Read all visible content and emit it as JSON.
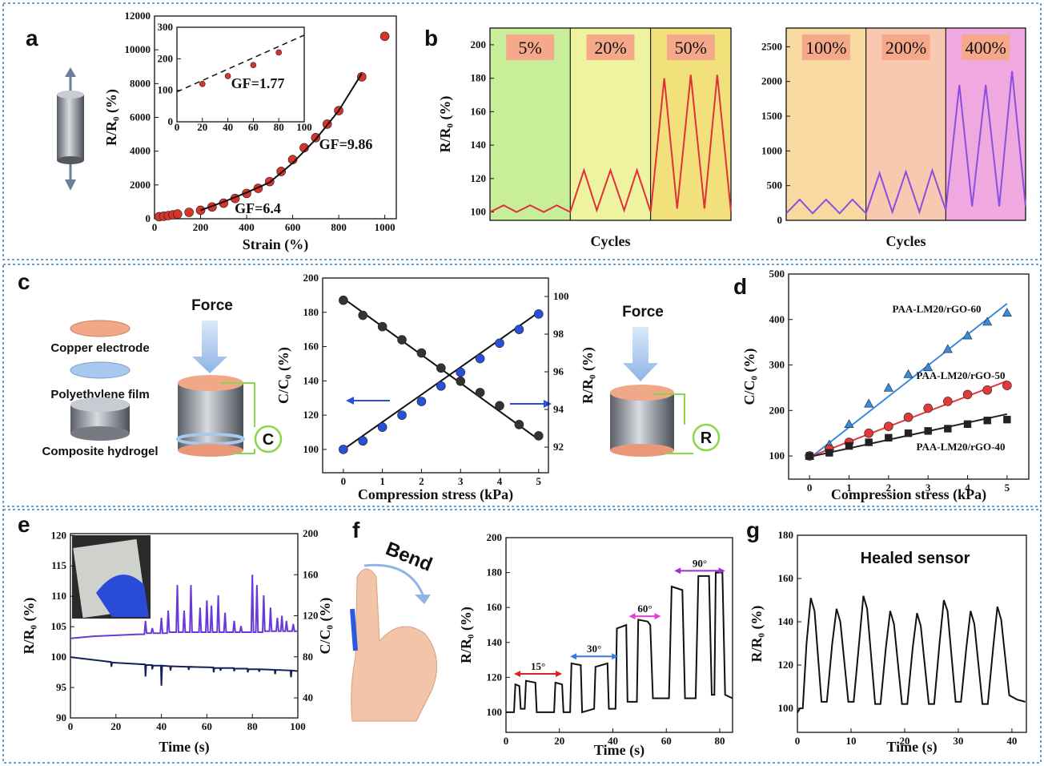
{
  "panels": [
    "a",
    "b",
    "c",
    "d",
    "e",
    "f",
    "g"
  ],
  "illustrations": {
    "layers": [
      "Copper electrode",
      "Polyethylene film",
      "Composite hydrogel"
    ],
    "force": "Force",
    "c_symbol": "C",
    "r_symbol": "R",
    "bend": "Bend"
  },
  "chart_data": [
    {
      "type": "scatter",
      "xlabel": "Strain (%)",
      "ylabel": "R/R₀ (%)",
      "xlim": [
        0,
        1050
      ],
      "ylim": [
        0,
        12000
      ],
      "xticks": [
        0,
        200,
        400,
        600,
        800,
        1000
      ],
      "yticks": [
        0,
        2000,
        4000,
        6000,
        8000,
        10000,
        12000
      ],
      "annotations": [
        "GF=9.86",
        "GF=6.4"
      ],
      "series": [
        {
          "color": "#d8352a",
          "marker": "circle",
          "x": [
            20,
            40,
            60,
            80,
            100,
            150,
            200,
            250,
            300,
            350,
            400,
            450,
            500,
            550,
            600,
            650,
            700,
            750,
            800,
            900,
            1000
          ],
          "values": [
            120,
            150,
            190,
            230,
            280,
            380,
            500,
            700,
            920,
            1200,
            1500,
            1800,
            2200,
            2800,
            3500,
            4200,
            4800,
            5600,
            6400,
            8400,
            10800
          ]
        },
        {
          "color": "#111111",
          "x": [
            200,
            300,
            400,
            500,
            600,
            700,
            800,
            900
          ],
          "values": [
            500,
            1000,
            1550,
            2150,
            3300,
            4700,
            6400,
            8600
          ]
        }
      ]
    },
    {
      "type": "scatter",
      "xlim": [
        0,
        100
      ],
      "ylim": [
        0,
        300
      ],
      "xticks": [
        0,
        20,
        40,
        60,
        80,
        100
      ],
      "yticks": [
        0,
        100,
        200,
        300
      ],
      "annotations": [
        "GF=1.77"
      ],
      "series": [
        {
          "color": "#d8352a",
          "marker": "circle",
          "x": [
            20,
            40,
            60,
            80
          ],
          "values": [
            120,
            145,
            180,
            220
          ]
        },
        {
          "color": "#111111",
          "dash": true,
          "x": [
            0,
            100
          ],
          "values": [
            95,
            275
          ]
        }
      ]
    },
    {
      "type": "line",
      "xlabel": "Cycles",
      "ylabel": "R/R₀ (%)",
      "xlim": [
        0,
        3
      ],
      "ylim": [
        95,
        210
      ],
      "yticks": [
        100,
        120,
        140,
        160,
        180,
        200
      ],
      "bands": [
        {
          "label": "5%",
          "color": "#c8ee9a"
        },
        {
          "label": "20%",
          "color": "#eef3a0"
        },
        {
          "label": "50%",
          "color": "#f2e17a"
        }
      ],
      "band_label_color": "#f6a88a",
      "series": [
        {
          "color": "#e0303a",
          "x": [
            0,
            0.17,
            0.33,
            0.5,
            0.67,
            0.83,
            1,
            1.17,
            1.33,
            1.5,
            1.67,
            1.83,
            2,
            2.17,
            2.33,
            2.5,
            2.67,
            2.83,
            3
          ],
          "values": [
            100,
            104,
            100,
            104,
            100,
            104,
            100,
            125,
            101,
            125,
            101,
            125,
            100,
            180,
            102,
            182,
            102,
            182,
            100
          ]
        }
      ]
    },
    {
      "type": "line",
      "xlabel": "Cycles",
      "xlim": [
        0,
        3
      ],
      "ylim": [
        0,
        2770
      ],
      "yticks": [
        0,
        500,
        1000,
        1500,
        2000,
        2500
      ],
      "bands": [
        {
          "label": "100%",
          "color": "#f8d9a0"
        },
        {
          "label": "200%",
          "color": "#f8c8b0"
        },
        {
          "label": "400%",
          "color": "#f0a8e0"
        }
      ],
      "band_label_color": "#f6a88a",
      "series": [
        {
          "color": "#8a4fe0",
          "x": [
            0,
            0.17,
            0.33,
            0.5,
            0.67,
            0.83,
            1,
            1.17,
            1.33,
            1.5,
            1.67,
            1.83,
            2,
            2.17,
            2.33,
            2.5,
            2.67,
            2.83,
            3
          ],
          "values": [
            100,
            300,
            100,
            300,
            100,
            300,
            100,
            680,
            120,
            700,
            120,
            720,
            150,
            1950,
            200,
            1950,
            200,
            2150,
            200
          ]
        }
      ]
    },
    {
      "type": "scatter",
      "xlabel": "Compression stress (kPa)",
      "ylabel": "C/C₀ (%)",
      "y2label": "R/R₀ (%)",
      "xlim": [
        -0.53,
        5.25
      ],
      "ylim": [
        86.4,
        200
      ],
      "y2lim": [
        90.64,
        100.98
      ],
      "xticks": [
        0,
        1,
        2,
        3,
        4,
        5
      ],
      "yticks": [
        100,
        120,
        140,
        160,
        180,
        200
      ],
      "y2ticks": [
        92,
        94,
        96,
        98,
        100
      ],
      "series": [
        {
          "color": "#111111",
          "x": [
            0,
            5
          ],
          "values": [
            100,
            180
          ]
        },
        {
          "color": "#111111",
          "axis": "y2",
          "x": [
            0,
            5
          ],
          "values": [
            99.9,
            92.4
          ]
        },
        {
          "color": "#2a4fd8",
          "marker": "circle",
          "x": [
            0,
            0.5,
            1,
            1.5,
            2,
            2.5,
            3,
            3.5,
            4,
            4.5,
            5
          ],
          "values": [
            100,
            105,
            113,
            120,
            128,
            137,
            145,
            153,
            162,
            170,
            179
          ]
        },
        {
          "color": "#333333",
          "marker": "circle",
          "axis": "y2",
          "x": [
            0,
            0.5,
            1,
            1.5,
            2,
            2.5,
            3,
            3.5,
            4,
            4.5,
            5
          ],
          "values": [
            99.8,
            99.0,
            98.4,
            97.7,
            97.0,
            96.2,
            95.5,
            94.9,
            94.2,
            93.2,
            92.6
          ]
        }
      ]
    },
    {
      "type": "scatter",
      "xlabel": "Compression stress (kPa)",
      "ylabel": "C/C₀ (%)",
      "xlim": [
        -0.53,
        5.55
      ],
      "ylim": [
        49,
        500
      ],
      "xticks": [
        0,
        1,
        2,
        3,
        4,
        5
      ],
      "yticks": [
        100,
        200,
        300,
        400,
        500
      ],
      "series": [
        {
          "color": "#3a8ae0",
          "x": [
            0,
            5
          ],
          "values": [
            95,
            435
          ]
        },
        {
          "color": "#e03a3a",
          "x": [
            0,
            5
          ],
          "values": [
            98,
            265
          ]
        },
        {
          "color": "#222222",
          "x": [
            0,
            5
          ],
          "values": [
            98,
            192
          ]
        },
        {
          "name": "PAA-LM20/rGO-60",
          "color": "#3a8ae0",
          "marker": "triangle",
          "x": [
            0,
            0.5,
            1,
            1.5,
            2,
            2.5,
            3,
            3.5,
            4,
            4.5,
            5
          ],
          "values": [
            100,
            125,
            170,
            215,
            250,
            280,
            295,
            335,
            365,
            395,
            415
          ]
        },
        {
          "name": "PAA-LM20/rGO-50",
          "color": "#e03a3a",
          "marker": "circle",
          "x": [
            0,
            0.5,
            1,
            1.5,
            2,
            2.5,
            3,
            3.5,
            4,
            4.5,
            5
          ],
          "values": [
            100,
            115,
            130,
            150,
            165,
            185,
            205,
            220,
            235,
            245,
            255
          ]
        },
        {
          "name": "PAA-LM20/rGO-40",
          "color": "#222222",
          "marker": "square",
          "x": [
            0,
            0.5,
            1,
            1.5,
            2,
            2.5,
            3,
            3.5,
            4,
            4.5,
            5
          ],
          "values": [
            100,
            107,
            122,
            130,
            140,
            150,
            155,
            160,
            170,
            178,
            180
          ]
        }
      ]
    },
    {
      "type": "line",
      "xlabel": "Time (s)",
      "ylabel": "R/R₀ (%)",
      "y2label": "C/C₀ (%)",
      "xlim": [
        0,
        100
      ],
      "ylim": [
        90,
        120.3
      ],
      "y2lim": [
        20.5,
        200
      ],
      "xticks": [
        0,
        20,
        40,
        60,
        80,
        100
      ],
      "yticks": [
        90,
        95,
        100,
        105,
        110,
        115,
        120
      ],
      "y2ticks": [
        40,
        80,
        120,
        160,
        200
      ],
      "series": [
        {
          "color": "#14205a",
          "x": [
            0,
            17.8,
            18,
            18.3,
            32.8,
            33,
            33.3,
            35.8,
            36,
            36.3,
            39.8,
            40,
            40.3,
            43.8,
            44,
            44.3,
            51.8,
            52,
            52.3,
            62.8,
            63,
            63.3,
            65.8,
            66,
            66.3,
            71.8,
            72,
            72.3,
            77.8,
            78,
            78.3,
            82.8,
            83,
            83.3,
            89.8,
            90,
            90.3,
            96.8,
            97,
            97.3,
            100
          ],
          "values": [
            100,
            99.2,
            98.4,
            99.1,
            98.8,
            96.8,
            98.7,
            98.7,
            98,
            98.6,
            98.6,
            95.3,
            98.6,
            98.5,
            97.8,
            98.5,
            98.4,
            97.9,
            98.4,
            98.3,
            97.5,
            98.2,
            98.2,
            97.8,
            98.2,
            98.2,
            97.7,
            98.1,
            98.1,
            97.5,
            98,
            98,
            97.6,
            98,
            97.9,
            97.2,
            97.9,
            97.8,
            96.7,
            97.8,
            97.7
          ]
        },
        {
          "color": "#6a3ad8",
          "axis": "y2",
          "x": [
            0,
            10,
            20,
            30,
            32.5,
            33,
            33.5,
            35.5,
            36,
            36.5,
            39.5,
            40,
            40.5,
            42.5,
            43,
            43.5,
            46.5,
            47,
            47.5,
            49.5,
            50,
            50.5,
            52.5,
            53,
            53.5,
            56.5,
            57,
            57.5,
            59.5,
            60,
            60.5,
            61.5,
            62,
            62.5,
            64.5,
            65,
            65.5,
            67.5,
            68,
            68.5,
            71.5,
            72,
            72.5,
            74.5,
            75,
            75.5,
            79.5,
            80,
            80.5,
            81.5,
            82,
            82.5,
            84.5,
            85,
            85.5,
            87.5,
            88,
            88.5,
            90.5,
            91,
            91.5,
            92.5,
            93,
            93.5,
            94.5,
            95,
            95.5,
            97.5,
            98,
            98.5,
            100
          ],
          "values": [
            98,
            100,
            101,
            102,
            102,
            115,
            103,
            103,
            108,
            103,
            103,
            118,
            103,
            103,
            125,
            104,
            104,
            150,
            104,
            104,
            125,
            104,
            104,
            150,
            104,
            104,
            128,
            104,
            104,
            135,
            104,
            104,
            130,
            104,
            104,
            140,
            104,
            104,
            123,
            104,
            104,
            115,
            104,
            104,
            110,
            104,
            104,
            160,
            104,
            104,
            150,
            104,
            104,
            140,
            105,
            105,
            128,
            105,
            105,
            118,
            105,
            105,
            120,
            105,
            105,
            115,
            105,
            105,
            112,
            105,
            105
          ]
        }
      ]
    },
    {
      "type": "line",
      "xlabel": "Time (s)",
      "ylabel": "R/R₀ (%)",
      "xlim": [
        0,
        84.8
      ],
      "ylim": [
        88.5,
        200
      ],
      "xticks": [
        0,
        20,
        40,
        60,
        80
      ],
      "yticks": [
        100,
        120,
        140,
        160,
        180,
        200
      ],
      "annotations": [
        "15°",
        "30°",
        "60°",
        "90°"
      ],
      "annotation_colors": [
        "#e02020",
        "#3a7ad8",
        "#e040d0",
        "#9a30d0"
      ],
      "series": [
        {
          "color": "#111111",
          "x": [
            0,
            2,
            3,
            3.5,
            5,
            5.5,
            7,
            7.5,
            11,
            11.5,
            18,
            18.5,
            21,
            21.5,
            24,
            24.5,
            28,
            28.5,
            33,
            33.5,
            38,
            38.5,
            41,
            41.5,
            45,
            45.5,
            49,
            49.5,
            53,
            54,
            55,
            61,
            62,
            66,
            67,
            71,
            72,
            76,
            77,
            78,
            78.5,
            81,
            82,
            84.8
          ],
          "values": [
            100,
            100,
            100,
            116,
            115,
            102,
            102,
            118,
            117,
            100,
            100,
            117,
            116,
            100,
            100,
            128,
            127,
            100,
            102,
            126,
            128,
            102,
            102,
            148,
            150,
            106,
            106,
            153,
            152,
            150,
            108,
            108,
            172,
            170,
            108,
            108,
            178,
            178,
            110,
            110,
            180,
            180,
            110,
            108
          ]
        }
      ]
    },
    {
      "type": "line",
      "xlabel": "Time (s)",
      "ylabel": "R/R₀ (%)",
      "xlim": [
        0,
        42.7
      ],
      "ylim": [
        88.9,
        180
      ],
      "xticks": [
        0,
        10,
        20,
        30,
        40
      ],
      "yticks": [
        100,
        120,
        140,
        160,
        180
      ],
      "annotations": [
        "Healed sensor"
      ],
      "series": [
        {
          "color": "#111111",
          "x": [
            0,
            0.5,
            1,
            1.7,
            2.5,
            3.2,
            4.5,
            5.5,
            6.5,
            7.3,
            8,
            9.5,
            10.5,
            11.5,
            12.3,
            13,
            14.5,
            15.5,
            16.5,
            17.3,
            18,
            19.5,
            20.5,
            21.5,
            22.3,
            23,
            24.5,
            25.5,
            26.5,
            27.3,
            28,
            29.5,
            30.5,
            31.5,
            32.3,
            33,
            34.5,
            35.5,
            36.5,
            37.3,
            38,
            39.5,
            41,
            42.5
          ],
          "values": [
            98,
            100,
            100,
            130,
            151,
            145,
            103,
            103,
            130,
            146,
            140,
            103,
            103,
            130,
            152,
            146,
            102,
            102,
            128,
            145,
            139,
            102,
            102,
            128,
            144,
            138,
            102,
            102,
            130,
            150,
            145,
            103,
            103,
            128,
            145,
            139,
            102,
            102,
            128,
            147,
            141,
            106,
            104,
            103
          ]
        }
      ]
    }
  ]
}
